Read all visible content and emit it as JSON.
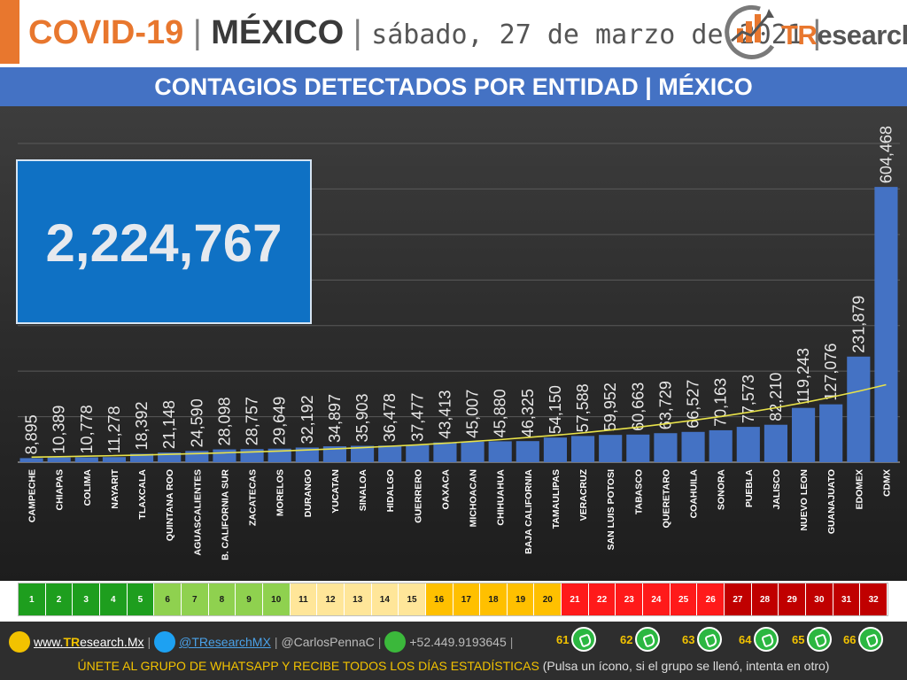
{
  "header": {
    "title_part1": "COVID-19",
    "sep": "|",
    "title_part2": "MÉXICO",
    "date": "sábado, 27 de marzo de 2021",
    "sep_end": "|",
    "brand_tr": "TR",
    "brand_rest": "esearch"
  },
  "banner": {
    "title": "CONTAGIOS DETECTADOS POR ENTIDAD | MÉXICO"
  },
  "total": "2,224,767",
  "chart_data": {
    "type": "bar",
    "categories": [
      "CAMPECHE",
      "CHIAPAS",
      "COLIMA",
      "NAYARIT",
      "TLAXCALA",
      "QUINTANA ROO",
      "AGUASCALIENTES",
      "B. CALIFORNIA SUR",
      "ZACATECAS",
      "MORELOS",
      "DURANGO",
      "YUCATAN",
      "SINALOA",
      "HIDALGO",
      "GUERRERO",
      "OAXACA",
      "MICHOACAN",
      "CHIHUAHUA",
      "BAJA CALIFORNIA",
      "TAMAULIPAS",
      "VERACRUZ",
      "SAN LUIS POTOSI",
      "TABASCO",
      "QUERETARO",
      "COAHUILA",
      "SONORA",
      "PUEBLA",
      "JALISCO",
      "NUEVO LEON",
      "GUANAJUATO",
      "EDOMEX",
      "CDMX"
    ],
    "values": [
      8895,
      10389,
      10778,
      11278,
      18392,
      21148,
      24590,
      28098,
      28757,
      29649,
      32192,
      34897,
      35903,
      36478,
      37477,
      43413,
      45007,
      45880,
      46325,
      54150,
      57588,
      59952,
      60663,
      63729,
      66527,
      70163,
      77573,
      82210,
      119243,
      127076,
      231879,
      604468
    ],
    "value_labels": [
      "8,895",
      "10,389",
      "10,778",
      "11,278",
      "18,392",
      "21,148",
      "24,590",
      "28,098",
      "28,757",
      "29,649",
      "32,192",
      "34,897",
      "35,903",
      "36,478",
      "37,477",
      "43,413",
      "45,007",
      "45,880",
      "46,325",
      "54,150",
      "57,588",
      "59,952",
      "60,663",
      "63,729",
      "66,527",
      "70,163",
      "77,573",
      "82,210",
      "119,243",
      "127,076",
      "231,879",
      "604,468"
    ],
    "trendline": "exponential",
    "bar_color": "#4472c4",
    "trend_color": "#e8e24a",
    "ylim": [
      0,
      700000
    ],
    "grid": true
  },
  "rank_strip": {
    "labels": [
      "1",
      "2",
      "3",
      "4",
      "5",
      "6",
      "7",
      "8",
      "9",
      "10",
      "11",
      "12",
      "13",
      "14",
      "15",
      "16",
      "17",
      "18",
      "19",
      "20",
      "21",
      "22",
      "23",
      "24",
      "25",
      "26",
      "27",
      "28",
      "29",
      "30",
      "31",
      "32"
    ],
    "colors": [
      "#1e9e1e",
      "#1e9e1e",
      "#1e9e1e",
      "#1e9e1e",
      "#1e9e1e",
      "#8fd14f",
      "#8fd14f",
      "#8fd14f",
      "#8fd14f",
      "#8fd14f",
      "#ffe699",
      "#ffe699",
      "#ffe699",
      "#ffe699",
      "#ffe699",
      "#ffc000",
      "#ffc000",
      "#ffc000",
      "#ffc000",
      "#ffc000",
      "#ff1a1a",
      "#ff1a1a",
      "#ff1a1a",
      "#ff1a1a",
      "#ff1a1a",
      "#ff1a1a",
      "#c00000",
      "#c00000",
      "#c00000",
      "#c00000",
      "#c00000",
      "#c00000"
    ],
    "text_colors": [
      "#ffffff",
      "#ffffff",
      "#ffffff",
      "#ffffff",
      "#ffffff",
      "#1a1a1a",
      "#1a1a1a",
      "#1a1a1a",
      "#1a1a1a",
      "#1a1a1a",
      "#1a1a1a",
      "#1a1a1a",
      "#1a1a1a",
      "#1a1a1a",
      "#1a1a1a",
      "#1a1a1a",
      "#1a1a1a",
      "#1a1a1a",
      "#1a1a1a",
      "#1a1a1a",
      "#ffffff",
      "#ffffff",
      "#ffffff",
      "#ffffff",
      "#ffffff",
      "#ffffff",
      "#ffffff",
      "#ffffff",
      "#ffffff",
      "#ffffff",
      "#ffffff",
      "#ffffff"
    ]
  },
  "footer": {
    "website_prefix": "www.",
    "website_brand": "TR",
    "website_rest": "esearch.Mx",
    "twitter": "@TResearchMX",
    "personal": "@CarlosPennaC",
    "phone": "+52.449.9193645",
    "pipe": "|",
    "whatsapp_groups": [
      "61",
      "62",
      "63",
      "64",
      "65",
      "66"
    ],
    "cta": "ÚNETE AL GRUPO DE WHATSAPP Y RECIBE TODOS LOS DÍAS ESTADÍSTICAS",
    "note": "(Pulsa un ícono, si el grupo se llenó, intenta en otro)"
  }
}
